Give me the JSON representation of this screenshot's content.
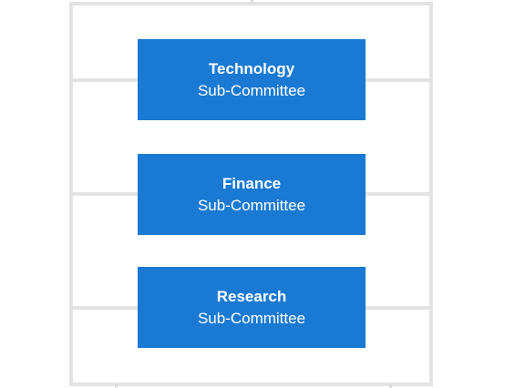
{
  "diagram": {
    "colors": {
      "box_fill": "#1a7ad3",
      "box_text": "#ffffff",
      "frame_line": "#e3e3e3",
      "background": "#ffffff"
    },
    "committees": [
      {
        "name": "Technology",
        "subtitle": "Sub-Committee"
      },
      {
        "name": "Finance",
        "subtitle": "Sub-Committee"
      },
      {
        "name": "Research",
        "subtitle": "Sub-Committee"
      }
    ]
  }
}
